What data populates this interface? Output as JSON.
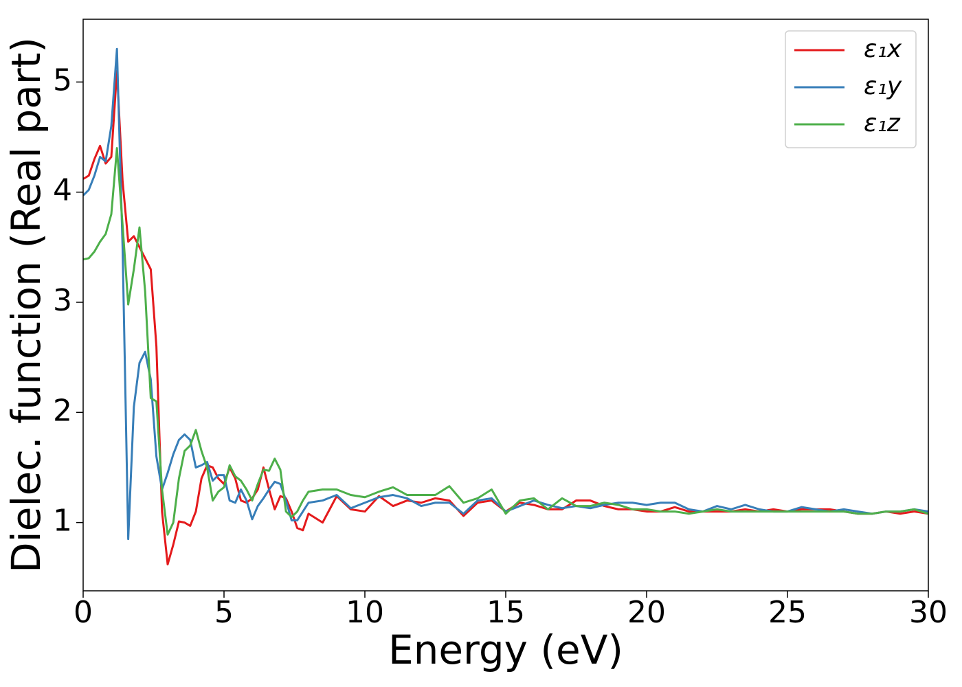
{
  "chart_data": {
    "type": "line",
    "xlabel": "Energy (eV)",
    "ylabel": "Dielec. function (Real part)",
    "x": [
      0,
      0.2,
      0.4,
      0.6,
      0.8,
      1.0,
      1.2,
      1.4,
      1.6,
      1.8,
      2.0,
      2.2,
      2.4,
      2.6,
      2.8,
      3.0,
      3.2,
      3.4,
      3.6,
      3.8,
      4.0,
      4.2,
      4.4,
      4.6,
      4.8,
      5.0,
      5.2,
      5.4,
      5.6,
      5.8,
      6.0,
      6.2,
      6.4,
      6.6,
      6.8,
      7.0,
      7.2,
      7.4,
      7.6,
      7.8,
      8.0,
      8.5,
      9,
      9.5,
      10,
      10.5,
      11,
      11.5,
      12,
      12.5,
      13,
      13.5,
      14,
      14.5,
      15,
      15.5,
      16,
      16.5,
      17,
      17.5,
      18,
      18.5,
      19,
      19.5,
      20,
      20.5,
      21,
      21.5,
      22,
      22.5,
      23,
      23.5,
      24,
      24.5,
      25,
      25.5,
      26,
      26.5,
      27,
      27.5,
      28,
      28.5,
      29,
      29.5,
      30
    ],
    "series": [
      {
        "name": "ε₁x",
        "color": "#e41a1c",
        "values": [
          4.12,
          4.15,
          4.3,
          4.42,
          4.26,
          4.32,
          5.1,
          4.1,
          3.55,
          3.6,
          3.5,
          3.4,
          3.3,
          2.6,
          1.1,
          0.62,
          0.8,
          1.01,
          1.0,
          0.97,
          1.1,
          1.4,
          1.52,
          1.5,
          1.4,
          1.35,
          1.5,
          1.4,
          1.2,
          1.18,
          1.22,
          1.3,
          1.5,
          1.3,
          1.12,
          1.24,
          1.22,
          1.1,
          0.95,
          0.93,
          1.08,
          1.0,
          1.24,
          1.12,
          1.1,
          1.24,
          1.15,
          1.2,
          1.18,
          1.22,
          1.2,
          1.06,
          1.18,
          1.2,
          1.1,
          1.18,
          1.16,
          1.12,
          1.12,
          1.2,
          1.2,
          1.15,
          1.12,
          1.12,
          1.1,
          1.1,
          1.14,
          1.1,
          1.1,
          1.1,
          1.1,
          1.12,
          1.1,
          1.12,
          1.1,
          1.12,
          1.12,
          1.12,
          1.1,
          1.08,
          1.08,
          1.1,
          1.08,
          1.1,
          1.08
        ]
      },
      {
        "name": "ε₁y",
        "color": "#377eb8",
        "values": [
          3.97,
          4.02,
          4.15,
          4.32,
          4.28,
          4.6,
          5.3,
          3.5,
          0.85,
          2.05,
          2.45,
          2.55,
          2.3,
          1.6,
          1.3,
          1.45,
          1.62,
          1.75,
          1.8,
          1.75,
          1.5,
          1.52,
          1.55,
          1.38,
          1.43,
          1.43,
          1.2,
          1.18,
          1.3,
          1.2,
          1.03,
          1.15,
          1.22,
          1.3,
          1.37,
          1.35,
          1.2,
          1.02,
          1.02,
          1.1,
          1.18,
          1.2,
          1.25,
          1.13,
          1.18,
          1.23,
          1.25,
          1.22,
          1.15,
          1.18,
          1.18,
          1.08,
          1.2,
          1.22,
          1.1,
          1.15,
          1.2,
          1.16,
          1.13,
          1.15,
          1.13,
          1.16,
          1.18,
          1.18,
          1.16,
          1.18,
          1.18,
          1.12,
          1.1,
          1.15,
          1.12,
          1.16,
          1.12,
          1.1,
          1.1,
          1.14,
          1.12,
          1.1,
          1.12,
          1.1,
          1.08,
          1.1,
          1.1,
          1.12,
          1.1
        ]
      },
      {
        "name": "ε₁z",
        "color": "#4daf4a",
        "values": [
          3.39,
          3.4,
          3.46,
          3.55,
          3.62,
          3.8,
          4.4,
          3.7,
          2.98,
          3.3,
          3.68,
          3.1,
          2.13,
          2.1,
          1.3,
          0.89,
          1.0,
          1.4,
          1.65,
          1.7,
          1.84,
          1.65,
          1.5,
          1.2,
          1.28,
          1.32,
          1.52,
          1.42,
          1.38,
          1.3,
          1.2,
          1.35,
          1.48,
          1.47,
          1.58,
          1.48,
          1.1,
          1.05,
          1.1,
          1.2,
          1.28,
          1.3,
          1.3,
          1.25,
          1.23,
          1.28,
          1.32,
          1.25,
          1.25,
          1.25,
          1.33,
          1.18,
          1.22,
          1.3,
          1.08,
          1.2,
          1.22,
          1.12,
          1.22,
          1.15,
          1.15,
          1.18,
          1.16,
          1.12,
          1.12,
          1.1,
          1.1,
          1.08,
          1.1,
          1.12,
          1.1,
          1.1,
          1.1,
          1.1,
          1.1,
          1.1,
          1.1,
          1.1,
          1.1,
          1.08,
          1.08,
          1.1,
          1.1,
          1.12,
          1.08
        ]
      }
    ],
    "xlim": [
      0,
      30
    ],
    "xticks": [
      0,
      5,
      10,
      15,
      20,
      25,
      30
    ],
    "ylim": [
      0.38,
      5.57
    ],
    "yticks": [
      1,
      2,
      3,
      4,
      5
    ],
    "grid": false,
    "legend": "upper right"
  }
}
